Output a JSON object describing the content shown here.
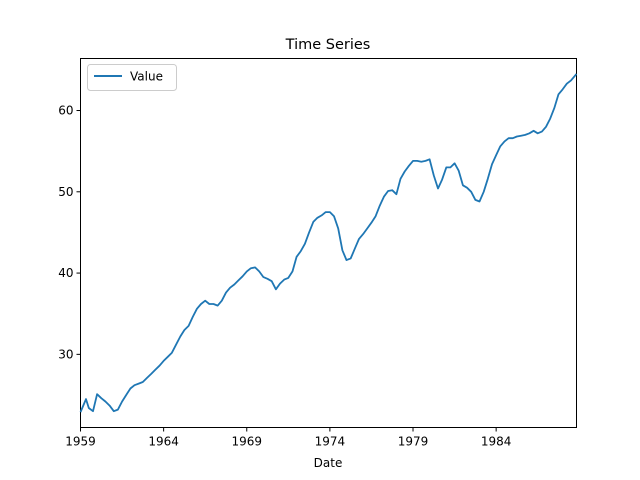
{
  "chart_data": {
    "type": "line",
    "title": "Time Series",
    "xlabel": "Date",
    "ylabel": "",
    "xlim": [
      "1959-01",
      "1988-11"
    ],
    "ylim": [
      21.0,
      66.4
    ],
    "x_ticks": [
      "1959",
      "1964",
      "1969",
      "1974",
      "1979",
      "1984"
    ],
    "y_ticks": [
      30,
      40,
      50,
      60
    ],
    "grid": false,
    "legend_position": "upper-left",
    "series": [
      {
        "name": "Value",
        "color": "#1f77b4",
        "points": [
          [
            "1959-01",
            22.9
          ],
          [
            "1959-05",
            24.5
          ],
          [
            "1959-07",
            23.4
          ],
          [
            "1959-10",
            23.0
          ],
          [
            "1960-01",
            25.1
          ],
          [
            "1960-04",
            24.6
          ],
          [
            "1960-07",
            24.2
          ],
          [
            "1960-10",
            23.7
          ],
          [
            "1961-01",
            23.0
          ],
          [
            "1961-04",
            23.2
          ],
          [
            "1961-07",
            24.2
          ],
          [
            "1961-10",
            25.0
          ],
          [
            "1962-01",
            25.8
          ],
          [
            "1962-04",
            26.2
          ],
          [
            "1962-07",
            26.4
          ],
          [
            "1962-10",
            26.6
          ],
          [
            "1963-01",
            27.1
          ],
          [
            "1963-04",
            27.6
          ],
          [
            "1963-07",
            28.1
          ],
          [
            "1963-10",
            28.6
          ],
          [
            "1964-01",
            29.2
          ],
          [
            "1964-04",
            29.7
          ],
          [
            "1964-07",
            30.2
          ],
          [
            "1964-10",
            31.2
          ],
          [
            "1965-01",
            32.2
          ],
          [
            "1965-04",
            33.0
          ],
          [
            "1965-07",
            33.5
          ],
          [
            "1965-10",
            34.6
          ],
          [
            "1966-01",
            35.6
          ],
          [
            "1966-04",
            36.2
          ],
          [
            "1966-07",
            36.6
          ],
          [
            "1966-10",
            36.2
          ],
          [
            "1967-01",
            36.2
          ],
          [
            "1967-04",
            36.0
          ],
          [
            "1967-07",
            36.6
          ],
          [
            "1967-10",
            37.6
          ],
          [
            "1968-01",
            38.2
          ],
          [
            "1968-04",
            38.6
          ],
          [
            "1968-07",
            39.1
          ],
          [
            "1968-10",
            39.6
          ],
          [
            "1969-01",
            40.2
          ],
          [
            "1969-04",
            40.6
          ],
          [
            "1969-07",
            40.7
          ],
          [
            "1969-10",
            40.2
          ],
          [
            "1970-01",
            39.5
          ],
          [
            "1970-04",
            39.3
          ],
          [
            "1970-07",
            39.0
          ],
          [
            "1970-10",
            38.0
          ],
          [
            "1971-01",
            38.7
          ],
          [
            "1971-04",
            39.2
          ],
          [
            "1971-07",
            39.4
          ],
          [
            "1971-10",
            40.2
          ],
          [
            "1972-01",
            42.0
          ],
          [
            "1972-04",
            42.7
          ],
          [
            "1972-07",
            43.6
          ],
          [
            "1972-10",
            45.0
          ],
          [
            "1973-01",
            46.3
          ],
          [
            "1973-04",
            46.8
          ],
          [
            "1973-07",
            47.1
          ],
          [
            "1973-10",
            47.5
          ],
          [
            "1974-01",
            47.5
          ],
          [
            "1974-04",
            47.0
          ],
          [
            "1974-07",
            45.5
          ],
          [
            "1974-10",
            42.8
          ],
          [
            "1975-01",
            41.6
          ],
          [
            "1975-04",
            41.8
          ],
          [
            "1975-07",
            43.0
          ],
          [
            "1975-10",
            44.2
          ],
          [
            "1976-01",
            44.8
          ],
          [
            "1976-04",
            45.5
          ],
          [
            "1976-07",
            46.2
          ],
          [
            "1976-10",
            47.0
          ],
          [
            "1977-01",
            48.3
          ],
          [
            "1977-04",
            49.4
          ],
          [
            "1977-07",
            50.1
          ],
          [
            "1977-10",
            50.2
          ],
          [
            "1978-01",
            49.7
          ],
          [
            "1978-04",
            51.6
          ],
          [
            "1978-07",
            52.5
          ],
          [
            "1978-10",
            53.2
          ],
          [
            "1979-01",
            53.8
          ],
          [
            "1979-04",
            53.8
          ],
          [
            "1979-07",
            53.7
          ],
          [
            "1979-10",
            53.8
          ],
          [
            "1980-01",
            54.0
          ],
          [
            "1980-04",
            52.0
          ],
          [
            "1980-07",
            50.4
          ],
          [
            "1980-10",
            51.5
          ],
          [
            "1981-01",
            53.0
          ],
          [
            "1981-04",
            53.0
          ],
          [
            "1981-07",
            53.5
          ],
          [
            "1981-10",
            52.6
          ],
          [
            "1982-01",
            50.8
          ],
          [
            "1982-04",
            50.5
          ],
          [
            "1982-07",
            50.0
          ],
          [
            "1982-10",
            49.0
          ],
          [
            "1983-01",
            48.8
          ],
          [
            "1983-04",
            50.0
          ],
          [
            "1983-07",
            51.6
          ],
          [
            "1983-10",
            53.4
          ],
          [
            "1984-01",
            54.5
          ],
          [
            "1984-04",
            55.6
          ],
          [
            "1984-07",
            56.2
          ],
          [
            "1984-10",
            56.6
          ],
          [
            "1985-01",
            56.6
          ],
          [
            "1985-04",
            56.8
          ],
          [
            "1985-07",
            56.9
          ],
          [
            "1985-10",
            57.0
          ],
          [
            "1986-01",
            57.2
          ],
          [
            "1986-04",
            57.5
          ],
          [
            "1986-07",
            57.2
          ],
          [
            "1986-10",
            57.4
          ],
          [
            "1987-01",
            58.0
          ],
          [
            "1987-04",
            59.0
          ],
          [
            "1987-07",
            60.3
          ],
          [
            "1987-10",
            62.0
          ],
          [
            "1988-01",
            62.6
          ],
          [
            "1988-04",
            63.3
          ],
          [
            "1988-07",
            63.7
          ],
          [
            "1988-11",
            64.5
          ]
        ]
      }
    ]
  }
}
